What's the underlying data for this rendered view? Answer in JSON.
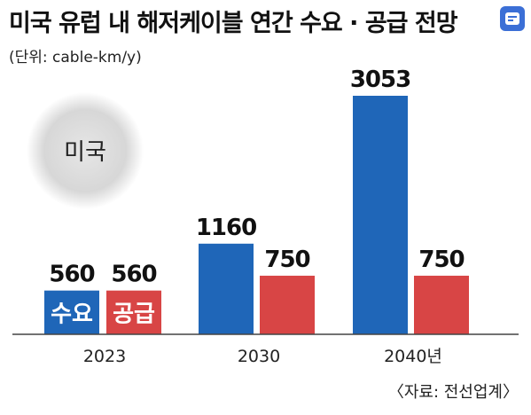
{
  "title": "미국 유럽 내 해저케이블 연간 수요 · 공급 전망",
  "unit": "(단위: cable-km/y)",
  "source": "〈자료: 전선업계〉",
  "region_label": "미국",
  "colors": {
    "demand": "#1f66b8",
    "supply": "#d84545",
    "region_circle": "#d9d9d9"
  },
  "chart_data": {
    "type": "bar",
    "categories": [
      "2023",
      "2030",
      "2040년"
    ],
    "series": [
      {
        "name": "수요",
        "values": [
          560,
          1160,
          3053
        ]
      },
      {
        "name": "공급",
        "values": [
          560,
          750,
          750
        ]
      }
    ],
    "ylim": [
      0,
      3053
    ],
    "legend": "inline-first-category",
    "grid": false
  }
}
